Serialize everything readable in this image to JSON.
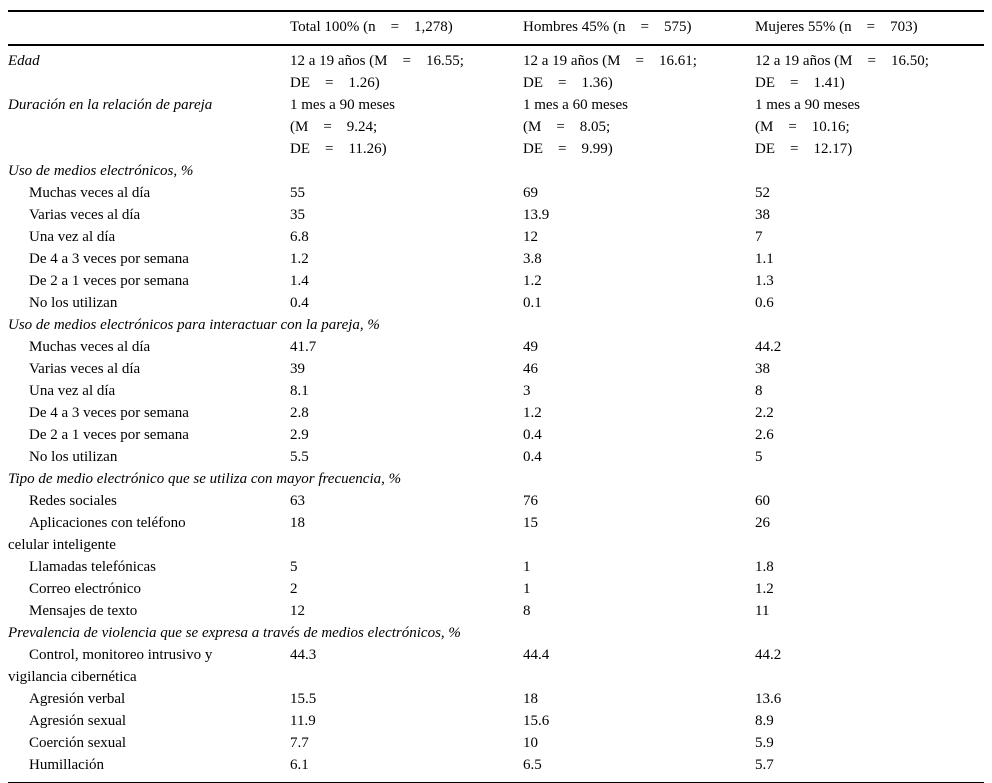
{
  "table": {
    "columns": [
      "",
      "Total 100% (n    =    1,278)",
      "Hombres 45% (n    =    575)",
      "Mujeres 55% (n    =    703)"
    ],
    "rows": [
      {
        "type": "attr",
        "label": "Edad",
        "values": [
          "12 a 19 años (M    =    16.55;\nDE    =    1.26)",
          "12 a 19 años (M    =    16.61;\nDE    =    1.36)",
          "12 a 19 años (M    =    16.50;\nDE    =    1.41)"
        ]
      },
      {
        "type": "attr",
        "label": "Duración en la relación de pareja",
        "values": [
          "1 mes a 90 meses\n(M    =    9.24;\nDE    =    11.26)",
          "1 mes a 60 meses\n(M    =    8.05;\nDE    =    9.99)",
          "1 mes a 90 meses\n(M    =    10.16;\nDE    =    12.17)"
        ]
      },
      {
        "type": "section",
        "label": "Uso de medios electrónicos, %"
      },
      {
        "type": "item",
        "label": "Muchas veces al día",
        "values": [
          "55",
          "69",
          "52"
        ]
      },
      {
        "type": "item",
        "label": "Varias veces al día",
        "values": [
          "35",
          "13.9",
          "38"
        ]
      },
      {
        "type": "item",
        "label": "Una vez al día",
        "values": [
          "6.8",
          "12",
          "7"
        ]
      },
      {
        "type": "item",
        "label": "De 4 a 3 veces por semana",
        "values": [
          "1.2",
          "3.8",
          "1.1"
        ]
      },
      {
        "type": "item",
        "label": "De 2 a 1 veces por semana",
        "values": [
          "1.4",
          "1.2",
          "1.3"
        ]
      },
      {
        "type": "item",
        "label": "No los utilizan",
        "values": [
          "0.4",
          "0.1",
          "0.6"
        ]
      },
      {
        "type": "section",
        "label": "Uso de medios electrónicos para interactuar con la pareja, %"
      },
      {
        "type": "item",
        "label": "Muchas veces al día",
        "values": [
          "41.7",
          "49",
          "44.2"
        ]
      },
      {
        "type": "item",
        "label": "Varias veces al día",
        "values": [
          "39",
          "46",
          "38"
        ]
      },
      {
        "type": "item",
        "label": "Una vez al día",
        "values": [
          "8.1",
          "3",
          "8"
        ]
      },
      {
        "type": "item",
        "label": "De 4 a 3 veces por semana",
        "values": [
          "2.8",
          "1.2",
          "2.2"
        ]
      },
      {
        "type": "item",
        "label": "De 2 a 1 veces por semana",
        "values": [
          "2.9",
          "0.4",
          "2.6"
        ]
      },
      {
        "type": "item",
        "label": "No los utilizan",
        "values": [
          "5.5",
          "0.4",
          "5"
        ]
      },
      {
        "type": "section",
        "label": "Tipo de medio electrónico que se utiliza con mayor frecuencia, %"
      },
      {
        "type": "item",
        "label": "Redes sociales",
        "values": [
          "63",
          "76",
          "60"
        ]
      },
      {
        "type": "item",
        "label": "Aplicaciones con teléfono\ncelular inteligente",
        "values": [
          "18",
          "15",
          "26"
        ]
      },
      {
        "type": "item",
        "label": "Llamadas telefónicas",
        "values": [
          "5",
          "1",
          "1.8"
        ]
      },
      {
        "type": "item",
        "label": "Correo electrónico",
        "values": [
          "2",
          "1",
          "1.2"
        ]
      },
      {
        "type": "item",
        "label": "Mensajes de texto",
        "values": [
          "12",
          "8",
          "11"
        ]
      },
      {
        "type": "section",
        "label": "Prevalencia de violencia que se expresa a través de medios electrónicos, %"
      },
      {
        "type": "item",
        "label": "Control, monitoreo intrusivo y\nvigilancia cibernética",
        "values": [
          "44.3",
          "44.4",
          "44.2"
        ]
      },
      {
        "type": "item",
        "label": "Agresión verbal",
        "values": [
          "15.5",
          "18",
          "13.6"
        ]
      },
      {
        "type": "item",
        "label": "Agresión sexual",
        "values": [
          "11.9",
          "15.6",
          "8.9"
        ]
      },
      {
        "type": "item",
        "label": "Coerción sexual",
        "values": [
          "7.7",
          "10",
          "5.9"
        ]
      },
      {
        "type": "item",
        "label": "Humillación",
        "values": [
          "6.1",
          "6.5",
          "5.7"
        ]
      }
    ]
  }
}
